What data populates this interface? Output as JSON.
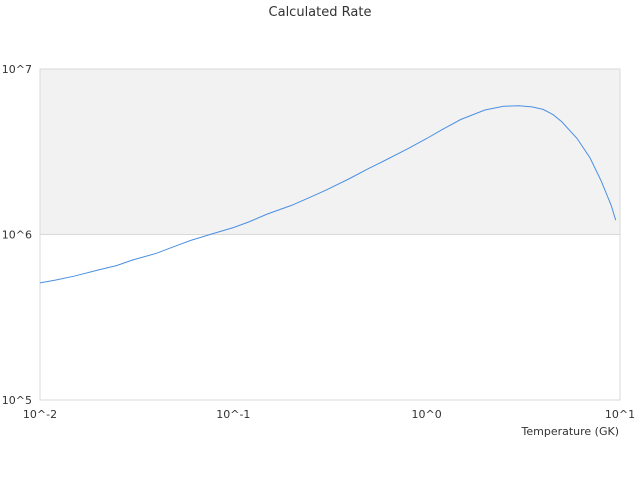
{
  "chart_data": {
    "type": "line",
    "title": "Calculated Rate",
    "xlabel": "Temperature (GK)",
    "ylabel": "",
    "xscale": "log",
    "yscale": "log",
    "xlim": [
      0.01,
      10
    ],
    "ylim": [
      100000,
      10000000
    ],
    "x_tick_labels": [
      "10^-2",
      "10^-1",
      "10^0",
      "10^1"
    ],
    "y_tick_labels": [
      "10^5",
      "10^6",
      "10^7"
    ],
    "colors": {
      "line": "#4a90e2",
      "band": "#f2f2f2",
      "frame": "#d9d9d9"
    },
    "highlight_band": {
      "y_from": 1000000,
      "y_to": 10000000
    },
    "series": [
      {
        "x": [
          0.01,
          0.012,
          0.015,
          0.02,
          0.025,
          0.03,
          0.04,
          0.05,
          0.06,
          0.08,
          0.1,
          0.12,
          0.15,
          0.2,
          0.25,
          0.3,
          0.4,
          0.5,
          0.6,
          0.8,
          1.0,
          1.2,
          1.5,
          2.0,
          2.5,
          3.0,
          3.5,
          4.0,
          4.5,
          5.0,
          6.0,
          7.0,
          8.0,
          9.0,
          9.5
        ],
        "y": [
          510000,
          530000,
          560000,
          610000,
          650000,
          700000,
          770000,
          850000,
          920000,
          1020000,
          1100000,
          1190000,
          1330000,
          1500000,
          1680000,
          1850000,
          2180000,
          2500000,
          2780000,
          3300000,
          3800000,
          4300000,
          4950000,
          5650000,
          5950000,
          6000000,
          5900000,
          5700000,
          5300000,
          4800000,
          3800000,
          2900000,
          2100000,
          1500000,
          1220000
        ]
      }
    ]
  }
}
